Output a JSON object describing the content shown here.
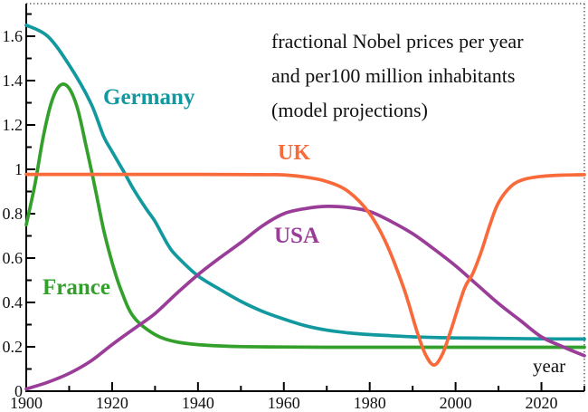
{
  "figure": {
    "title_lines": [
      "fractional Nobel prices per year",
      "and per100 million inhabitants",
      "(model projections)"
    ],
    "x_axis_unit": "year"
  },
  "chart_data": {
    "type": "line",
    "title": "fractional Nobel prices per year and per100 million inhabitants (model projections)",
    "xlabel": "year",
    "ylabel": "fractional Nobel prices per year and per 100 million inhabitants",
    "xlim": [
      1900,
      2030
    ],
    "ylim": [
      0,
      1.747
    ],
    "grid": false,
    "legend_position": "inline-labels",
    "frame": {
      "solid_sides": [
        "left",
        "bottom"
      ],
      "dotted_sides": [
        "top",
        "right"
      ]
    },
    "x_ticks": {
      "major": [
        1900,
        1920,
        1940,
        1960,
        1980,
        2000,
        2020
      ],
      "labels": [
        "1900",
        "1920",
        "1940",
        "1960",
        "1980",
        "2000",
        "2020"
      ],
      "minor": [
        1910,
        1930,
        1950,
        1970,
        1990,
        2010,
        2030
      ]
    },
    "y_ticks": {
      "major": [
        0,
        0.2,
        0.4,
        0.6,
        0.8,
        1.0,
        1.2,
        1.4,
        1.6
      ],
      "labels": [
        "0",
        "0.2",
        "0.4",
        "0.6",
        "0.8",
        "1",
        "1.2",
        "1.4",
        "1.6"
      ],
      "minor": [
        0.1,
        0.3,
        0.5,
        0.7,
        0.9,
        1.1,
        1.3,
        1.5,
        1.7
      ]
    },
    "series": [
      {
        "name": "Germany",
        "color": "#12999f",
        "x": [
          1900,
          1905,
          1910,
          1915,
          1918,
          1920,
          1923,
          1925,
          1928,
          1930,
          1933,
          1935,
          1940,
          1945,
          1950,
          1955,
          1960,
          1965,
          1970,
          1975,
          1980,
          1985,
          1990,
          1995,
          2000,
          2010,
          2020,
          2030
        ],
        "y": [
          1.65,
          1.6,
          1.47,
          1.3,
          1.15,
          1.08,
          0.98,
          0.91,
          0.82,
          0.765,
          0.66,
          0.61,
          0.52,
          0.46,
          0.405,
          0.36,
          0.325,
          0.295,
          0.275,
          0.263,
          0.255,
          0.25,
          0.245,
          0.242,
          0.24,
          0.238,
          0.236,
          0.235
        ]
      },
      {
        "name": "France",
        "color": "#33a02c",
        "x": [
          1900,
          1902,
          1904,
          1906,
          1908,
          1910,
          1912,
          1914,
          1916,
          1918,
          1920,
          1922,
          1925,
          1930,
          1935,
          1940,
          1945,
          1950,
          1960,
          1970,
          1980,
          1990,
          2000,
          2010,
          2020,
          2030
        ],
        "y": [
          0.75,
          0.93,
          1.15,
          1.31,
          1.38,
          1.365,
          1.27,
          1.1,
          0.92,
          0.73,
          0.58,
          0.46,
          0.335,
          0.255,
          0.222,
          0.21,
          0.204,
          0.201,
          0.199,
          0.198,
          0.198,
          0.198,
          0.198,
          0.198,
          0.198,
          0.198
        ]
      },
      {
        "name": "USA",
        "color": "#993d98",
        "x": [
          1900,
          1905,
          1910,
          1915,
          1920,
          1925,
          1930,
          1935,
          1940,
          1945,
          1950,
          1955,
          1960,
          1965,
          1970,
          1975,
          1980,
          1985,
          1990,
          1995,
          2000,
          2005,
          2010,
          2015,
          2020,
          2025,
          2030
        ],
        "y": [
          0.01,
          0.04,
          0.08,
          0.135,
          0.21,
          0.28,
          0.35,
          0.44,
          0.525,
          0.6,
          0.67,
          0.745,
          0.8,
          0.823,
          0.833,
          0.828,
          0.81,
          0.765,
          0.71,
          0.64,
          0.565,
          0.48,
          0.395,
          0.32,
          0.245,
          0.2,
          0.16
        ]
      },
      {
        "name": "UK",
        "color": "#f96a3b",
        "x": [
          1900,
          1940,
          1955,
          1960,
          1965,
          1970,
          1975,
          1980,
          1984,
          1988,
          1991,
          1993,
          1995,
          1997,
          1999,
          2002,
          2004,
          2006,
          2008,
          2010,
          2013,
          2016,
          2020,
          2025,
          2030
        ],
        "y": [
          0.977,
          0.977,
          0.976,
          0.975,
          0.965,
          0.945,
          0.9,
          0.8,
          0.66,
          0.46,
          0.27,
          0.165,
          0.118,
          0.17,
          0.28,
          0.46,
          0.53,
          0.63,
          0.75,
          0.85,
          0.925,
          0.955,
          0.968,
          0.974,
          0.976
        ]
      }
    ]
  }
}
